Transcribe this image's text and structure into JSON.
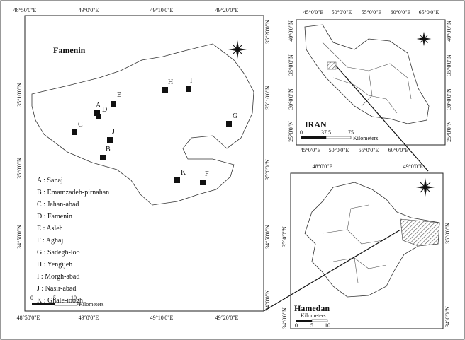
{
  "main_map": {
    "title": "Famenin",
    "top_labels": [
      "48°50'0\"E",
      "49°0'0\"E",
      "49°10'0\"E",
      "49°20'0\"E"
    ],
    "bottom_labels": [
      "48°50'0\"E",
      "49°0'0\"E",
      "49°10'0\"E",
      "49°20'0\"E"
    ],
    "left_labels": [
      "35°10'0\"N",
      "35°0'0\"N",
      "34°50'0\"N"
    ],
    "right_labels": [
      "35°20'0\"N",
      "35°10'0\"N",
      "35°0'0\"N",
      "34°50'0\"N",
      "34°0'0\"N"
    ],
    "points": [
      "H",
      "I",
      "E",
      "A",
      "D",
      "C",
      "J",
      "B",
      "G",
      "K",
      "F"
    ],
    "legend": [
      "A : Sanaj",
      "B : Emamzadeh-pirnahan",
      "C : Jahan-abad",
      "D : Famenin",
      "E : Asleh",
      "F : Aghaj",
      "G : Sadegh-loo",
      "H : Yengijeh",
      "I : Morgh-abad",
      "J : Nasir-abad",
      "K : Ghale-joogh"
    ],
    "scale": [
      "0",
      "5",
      "10",
      "Kilometers"
    ]
  },
  "iran_map": {
    "title": "IRAN",
    "top_labels": [
      "45°0'0\"E",
      "50°0'0\"E",
      "55°0'0\"E",
      "60°0'0\"E",
      "65°0'0\"E"
    ],
    "bottom_labels": [
      "45°0'0\"E",
      "50°0'0\"E",
      "55°0'0\"E",
      "60°0'0\"E"
    ],
    "left_labels": [
      "40°0'0\"N",
      "35°0'0\"N",
      "30°0'0\"N",
      "25°0'0\"N"
    ],
    "right_labels": [
      "40°0'0\"N",
      "35°0'0\"N",
      "30°0'0\"N",
      "25°0'0\"N"
    ],
    "scale": [
      "0",
      "37.5",
      "75",
      "Kilometers"
    ]
  },
  "hamedan_map": {
    "title": "Hamedan",
    "top_labels": [
      "48°0'0\"E",
      "49°0'0\"E"
    ],
    "left_labels": [
      "35°0'0\"N",
      "34°0'0\"N"
    ],
    "right_labels": [
      "35°0'0\"N",
      "34°0'0\"N"
    ],
    "scale": [
      "0",
      "5",
      "10",
      "Kilometers"
    ]
  }
}
